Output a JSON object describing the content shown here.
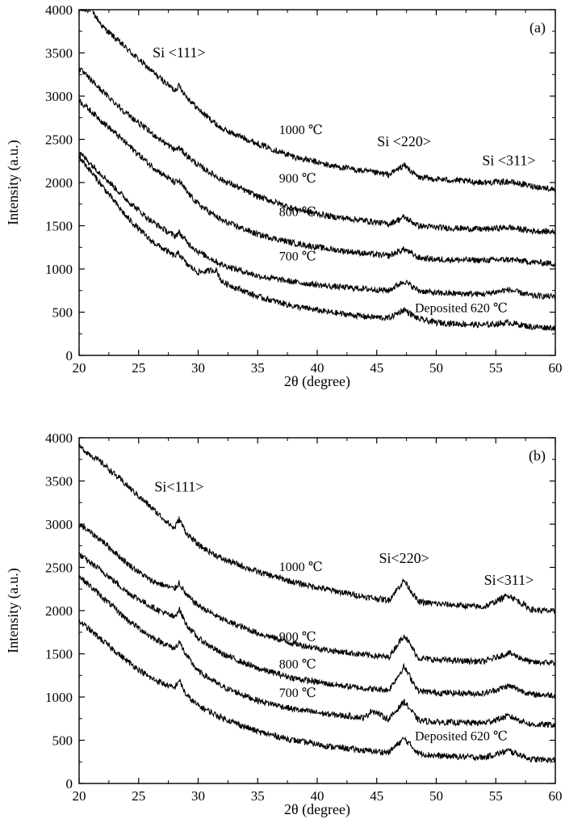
{
  "chart_data": [
    {
      "type": "line",
      "panel_label": "(a)",
      "xlabel": "2θ (degree)",
      "ylabel": "Intensity (a.u.)",
      "xlim": [
        20,
        60
      ],
      "ylim": [
        0,
        4000
      ],
      "xticks": [
        20,
        25,
        30,
        35,
        40,
        45,
        50,
        55,
        60
      ],
      "yticks": [
        0,
        500,
        1000,
        1500,
        2000,
        2500,
        3000,
        3500,
        4000
      ],
      "grid": false,
      "peak_labels": [
        {
          "text": "Si <111>",
          "x": 28.4,
          "y": 3450
        },
        {
          "text": "Si <220>",
          "x": 47.3,
          "y": 2420
        },
        {
          "text": "Si <311>",
          "x": 56.1,
          "y": 2200
        }
      ],
      "series": [
        {
          "name": "1000 ℃",
          "label_at": [
            36.8,
            2560
          ],
          "x": [
            21,
            22,
            24,
            26,
            28,
            28.4,
            29,
            30,
            32,
            35,
            38,
            41,
            44,
            46,
            47.3,
            48.5,
            50,
            54,
            56.1,
            58,
            60
          ],
          "y": [
            4000,
            3800,
            3550,
            3300,
            3070,
            3120,
            3000,
            2850,
            2620,
            2450,
            2300,
            2200,
            2130,
            2090,
            2200,
            2060,
            2040,
            2000,
            2010,
            1960,
            1920
          ]
        },
        {
          "name": "900 ℃",
          "label_at": [
            36.8,
            2000
          ],
          "x": [
            20,
            22,
            24,
            26,
            28,
            28.4,
            29,
            30,
            32,
            35,
            38,
            41,
            44,
            46,
            47.3,
            48.5,
            50,
            54,
            56.1,
            58,
            60
          ],
          "y": [
            3320,
            3050,
            2800,
            2580,
            2380,
            2400,
            2320,
            2200,
            2030,
            1840,
            1700,
            1610,
            1560,
            1520,
            1600,
            1500,
            1480,
            1460,
            1480,
            1440,
            1430
          ]
        },
        {
          "name": "800 ℃",
          "label_at": [
            36.8,
            1610
          ],
          "x": [
            20,
            22,
            24,
            26,
            28,
            28.4,
            29,
            30,
            32,
            35,
            38,
            41,
            44,
            46,
            47.3,
            48.5,
            50,
            54,
            56.1,
            58,
            60
          ],
          "y": [
            2950,
            2700,
            2450,
            2200,
            2000,
            2020,
            1900,
            1750,
            1560,
            1400,
            1300,
            1230,
            1180,
            1150,
            1230,
            1130,
            1110,
            1100,
            1110,
            1080,
            1060
          ]
        },
        {
          "name": "700 ℃",
          "label_at": [
            36.8,
            1100
          ],
          "x": [
            20,
            22,
            24,
            26,
            28,
            28.4,
            29,
            30,
            32,
            35,
            38,
            41,
            44,
            46,
            47.3,
            48.5,
            50,
            54,
            56.1,
            58,
            60
          ],
          "y": [
            2350,
            2080,
            1800,
            1560,
            1380,
            1420,
            1320,
            1200,
            1050,
            920,
            850,
            800,
            770,
            750,
            860,
            750,
            720,
            710,
            760,
            690,
            680
          ]
        },
        {
          "name": "Deposited 620 ℃",
          "label_at": [
            48.2,
            500
          ],
          "x": [
            20,
            22,
            24,
            26,
            28,
            28.4,
            29,
            30,
            31.5,
            32,
            35,
            38,
            41,
            44,
            46,
            47.3,
            48.5,
            50,
            54,
            56.1,
            58,
            60
          ],
          "y": [
            2300,
            1950,
            1600,
            1330,
            1150,
            1180,
            1060,
            960,
            990,
            850,
            680,
            570,
            500,
            450,
            430,
            530,
            420,
            380,
            350,
            380,
            330,
            320
          ]
        }
      ]
    },
    {
      "type": "line",
      "panel_label": "(b)",
      "xlabel": "2θ (degree)",
      "ylabel": "Intensity (a.u.)",
      "xlim": [
        20,
        60
      ],
      "ylim": [
        0,
        4000
      ],
      "xticks": [
        20,
        25,
        30,
        35,
        40,
        45,
        50,
        55,
        60
      ],
      "yticks": [
        0,
        500,
        1000,
        1500,
        2000,
        2500,
        3000,
        3500,
        4000
      ],
      "grid": false,
      "peak_labels": [
        {
          "text": "Si<111>",
          "x": 28.4,
          "y": 3380
        },
        {
          "text": "Si<220>",
          "x": 47.3,
          "y": 2550
        },
        {
          "text": "Si<311>",
          "x": 56.1,
          "y": 2300
        }
      ],
      "series": [
        {
          "name": "1000 ℃",
          "label_at": [
            36.8,
            2460
          ],
          "x": [
            20,
            22,
            24,
            26,
            28,
            28.4,
            29,
            30,
            32,
            35,
            38,
            41,
            44,
            46,
            47.3,
            48.5,
            50,
            54,
            56.1,
            58,
            60
          ],
          "y": [
            3900,
            3700,
            3450,
            3200,
            2950,
            3060,
            2900,
            2760,
            2600,
            2450,
            2330,
            2240,
            2160,
            2120,
            2350,
            2100,
            2080,
            2040,
            2180,
            2010,
            1990
          ]
        },
        {
          "name": "900 ℃",
          "label_at": [
            36.8,
            1650
          ],
          "x": [
            20,
            22,
            24,
            26,
            28,
            28.4,
            29,
            30,
            32,
            35,
            38,
            41,
            44,
            46,
            47.3,
            48.5,
            50,
            54,
            56.1,
            58,
            60
          ],
          "y": [
            3000,
            2800,
            2550,
            2350,
            2250,
            2320,
            2180,
            2060,
            1900,
            1740,
            1620,
            1540,
            1490,
            1460,
            1720,
            1450,
            1430,
            1410,
            1510,
            1400,
            1400
          ]
        },
        {
          "name": "800 ℃",
          "label_at": [
            36.8,
            1330
          ],
          "x": [
            20,
            22,
            24,
            26,
            28,
            28.4,
            29,
            30,
            32,
            35,
            38,
            41,
            44,
            46,
            47.3,
            48.5,
            50,
            54,
            56.1,
            58,
            60
          ],
          "y": [
            2650,
            2450,
            2220,
            2050,
            1920,
            2020,
            1840,
            1680,
            1500,
            1330,
            1220,
            1150,
            1100,
            1080,
            1350,
            1070,
            1050,
            1040,
            1130,
            1030,
            1020
          ]
        },
        {
          "name": "700 ℃",
          "label_at": [
            36.8,
            1000
          ],
          "x": [
            20,
            22,
            24,
            26,
            28,
            28.4,
            29,
            30,
            32,
            35,
            38,
            41,
            44,
            44.6,
            46,
            47.3,
            48.5,
            50,
            54,
            56.1,
            58,
            60
          ],
          "y": [
            2400,
            2150,
            1900,
            1700,
            1560,
            1640,
            1480,
            1300,
            1120,
            960,
            860,
            800,
            760,
            850,
            740,
            950,
            730,
            710,
            700,
            780,
            680,
            680
          ]
        },
        {
          "name": "Deposited 620 ℃",
          "label_at": [
            48.2,
            500
          ],
          "x": [
            20,
            22,
            24,
            26,
            28,
            28.4,
            29,
            30,
            32,
            35,
            38,
            41,
            44,
            46,
            47.3,
            48.5,
            50,
            54,
            56.1,
            58,
            60
          ],
          "y": [
            1880,
            1650,
            1420,
            1220,
            1100,
            1200,
            1020,
            900,
            760,
            600,
            500,
            430,
            380,
            360,
            520,
            350,
            320,
            300,
            380,
            280,
            270
          ]
        }
      ]
    }
  ]
}
